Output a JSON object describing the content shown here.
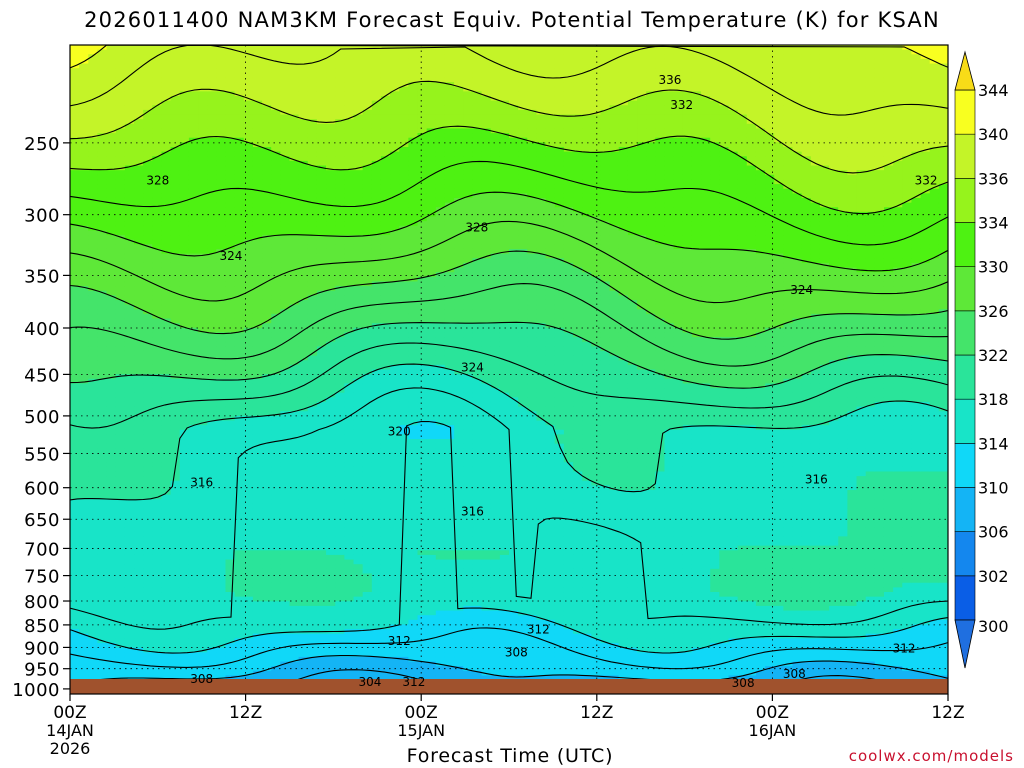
{
  "chart_data": {
    "type": "heatmap",
    "subtype": "time-height cross section (filled contours)",
    "title": "2026011400 NAM3KM Forecast Equiv. Potential Temperature (K) for KSAN",
    "xlabel": "Forecast Time (UTC)",
    "ylabel": "",
    "x_range_hours": [
      0,
      60
    ],
    "x_ticks": [
      {
        "hour": 0,
        "label": "00Z",
        "date": "14JAN",
        "year": "2026"
      },
      {
        "hour": 12,
        "label": "12Z",
        "date": "",
        "year": ""
      },
      {
        "hour": 24,
        "label": "00Z",
        "date": "15JAN",
        "year": ""
      },
      {
        "hour": 36,
        "label": "12Z",
        "date": "",
        "year": ""
      },
      {
        "hour": 48,
        "label": "00Z",
        "date": "16JAN",
        "year": ""
      },
      {
        "hour": 60,
        "label": "12Z",
        "date": "",
        "year": ""
      }
    ],
    "y_axis": "pressure (hPa), log scale, inverted",
    "y_range_hpa": [
      1013,
      195
    ],
    "y_ticks": [
      250,
      300,
      350,
      400,
      450,
      500,
      550,
      600,
      650,
      700,
      750,
      800,
      850,
      900,
      950,
      1000
    ],
    "gridlines": "dotted horizontal at each pressure level, vertical at each 12Z/00Z",
    "colorbar": {
      "levels": [
        300,
        302,
        306,
        310,
        314,
        318,
        322,
        326,
        330,
        334,
        336,
        340,
        344
      ],
      "labels": [
        "300",
        "302",
        "306",
        "310",
        "314",
        "318",
        "322",
        "326",
        "330",
        "334",
        "336",
        "340",
        "344"
      ],
      "colors": [
        "#0a5ee6",
        "#1487ee",
        "#14b4f5",
        "#10d8f8",
        "#18e4c8",
        "#2ae49a",
        "#44e46a",
        "#5ee838",
        "#4ef212",
        "#96f31c",
        "#c4f428",
        "#f8ff20",
        "#f8dc18"
      ]
    },
    "contour_labels": [
      {
        "value": "336",
        "hour": 41.0,
        "hpa": 213
      },
      {
        "value": "332",
        "hour": 41.8,
        "hpa": 227
      },
      {
        "value": "332",
        "hour": 58.5,
        "hpa": 275
      },
      {
        "value": "328",
        "hour": 6.0,
        "hpa": 275
      },
      {
        "value": "328",
        "hour": 27.8,
        "hpa": 310
      },
      {
        "value": "324",
        "hour": 11.0,
        "hpa": 333
      },
      {
        "value": "324",
        "hour": 50.0,
        "hpa": 363
      },
      {
        "value": "324",
        "hour": 27.5,
        "hpa": 442
      },
      {
        "value": "320",
        "hour": 22.5,
        "hpa": 520
      },
      {
        "value": "316",
        "hour": 9.0,
        "hpa": 592
      },
      {
        "value": "316",
        "hour": 51.0,
        "hpa": 588
      },
      {
        "value": "316",
        "hour": 27.5,
        "hpa": 637
      },
      {
        "value": "312",
        "hour": 32.0,
        "hpa": 860
      },
      {
        "value": "312",
        "hour": 22.5,
        "hpa": 885
      },
      {
        "value": "312",
        "hour": 57.0,
        "hpa": 903
      },
      {
        "value": "308",
        "hour": 30.5,
        "hpa": 912
      },
      {
        "value": "308",
        "hour": 9.0,
        "hpa": 975
      },
      {
        "value": "308",
        "hour": 49.5,
        "hpa": 963
      },
      {
        "value": "308",
        "hour": 46.0,
        "hpa": 985
      },
      {
        "value": "304",
        "hour": 20.5,
        "hpa": 983
      },
      {
        "value": "312",
        "hour": 23.5,
        "hpa": 983
      }
    ]
  },
  "credit": "coolwx.com/models"
}
